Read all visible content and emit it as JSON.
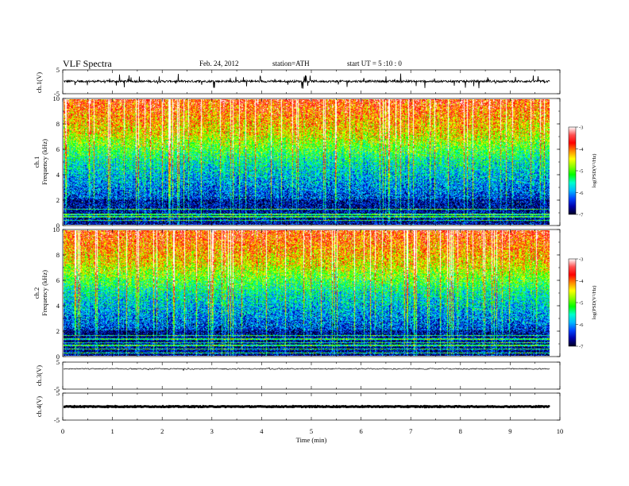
{
  "header": {
    "title": "VLF  Spectra",
    "date": "Feb. 24, 2012",
    "station": "station=ATH",
    "start": "start  UT  =   5  :10 : 0"
  },
  "chart_data": {
    "type": "heatmap",
    "xlabel": "Time  (min)",
    "xlim": [
      0,
      10
    ],
    "x_ticks": [
      "0",
      "1",
      "2",
      "3",
      "4",
      "5",
      "6",
      "7",
      "8",
      "9",
      "10"
    ],
    "data_end_min": 9.8,
    "panels": [
      {
        "id": "ch1v",
        "type": "line",
        "ylabel": "ch.1(V)",
        "ylim": [
          -5,
          5
        ],
        "y_ticks": [
          "5",
          "-5"
        ],
        "baseline": 0.2,
        "noise": "high"
      },
      {
        "id": "ch1s",
        "type": "heatmap",
        "ylabel_top": "ch.1",
        "ylabel": "Frequency  (kHz)",
        "ylim": [
          0,
          10
        ],
        "y_ticks": [
          "10",
          "8",
          "6",
          "4",
          "2",
          "0"
        ]
      },
      {
        "id": "ch2s",
        "type": "heatmap",
        "ylabel_top": "ch.2",
        "ylabel": "Frequency  (kHz)",
        "ylim": [
          0,
          10
        ],
        "y_ticks": [
          "10",
          "8",
          "6",
          "4",
          "2",
          "0"
        ]
      },
      {
        "id": "ch3v",
        "type": "line",
        "ylabel": "ch.3(V)",
        "ylim": [
          -5,
          5
        ],
        "y_ticks": [
          "5",
          "-5"
        ],
        "baseline": 2.5,
        "noise": "low"
      },
      {
        "id": "ch4v",
        "type": "line",
        "ylabel": "ch.4(V)",
        "ylim": [
          -5,
          5
        ],
        "y_ticks": [
          "5",
          "-5"
        ],
        "baseline": 0,
        "noise": "thick"
      }
    ],
    "colorbar": {
      "label": "log(PSD(V²/Hz)",
      "range": [
        -7,
        -3
      ],
      "ticks": [
        "-3",
        "-4",
        "-5",
        "-6",
        "-7"
      ],
      "colors": [
        "#ffffff",
        "#ff5050",
        "#ff0000",
        "#ff8800",
        "#ffff00",
        "#88ff00",
        "#00ff00",
        "#00ffcc",
        "#00bbff",
        "#0044ff",
        "#0000aa",
        "#000022"
      ]
    }
  }
}
